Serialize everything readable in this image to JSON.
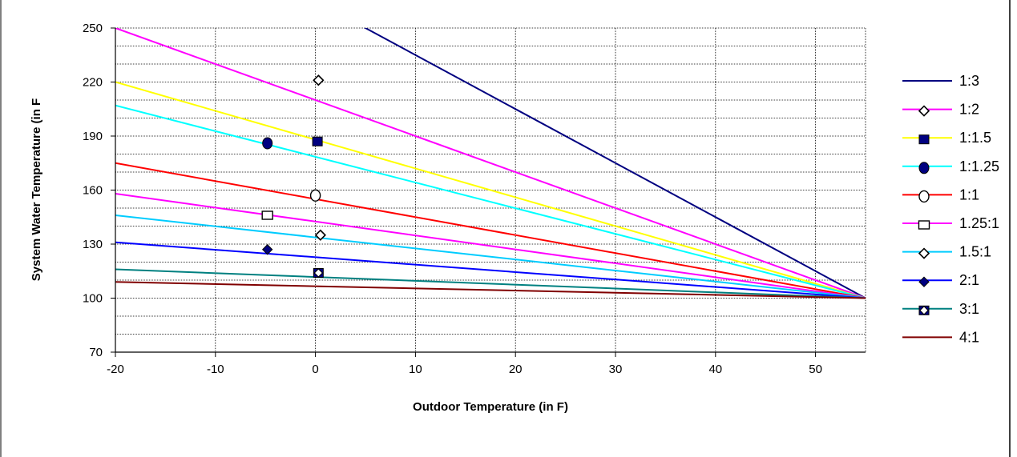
{
  "chart_data": {
    "type": "line",
    "title": "",
    "xlabel": "Outdoor Temperature (in F)",
    "ylabel": "System Water Temperature (in F",
    "xlim": [
      -20,
      55
    ],
    "ylim": [
      70,
      250
    ],
    "x_ticks": [
      -20,
      -10,
      0,
      10,
      20,
      30,
      40,
      50
    ],
    "y_ticks": [
      70,
      100,
      130,
      160,
      190,
      220,
      250
    ],
    "x_tick_labels": [
      "-20",
      "-10",
      "0",
      "10",
      "20",
      "30",
      "40",
      "50"
    ],
    "y_tick_labels": [
      "70",
      "100",
      "130",
      "160",
      "190",
      "220",
      "250"
    ],
    "y_minor_step": 10,
    "grid": true,
    "legend_position": "right",
    "series": [
      {
        "name": "1:3",
        "color": "#000080",
        "marker": "none",
        "line": [
          [
            -20,
            325
          ],
          [
            55,
            100
          ]
        ],
        "points": []
      },
      {
        "name": "1:2",
        "color": "#ff00ff",
        "marker": "diamond-open",
        "line": [
          [
            -20,
            250
          ],
          [
            55,
            100
          ]
        ],
        "points": [
          [
            0.3,
            221
          ]
        ]
      },
      {
        "name": "1:1.5",
        "color": "#ffff00",
        "marker": "square-filled",
        "line": [
          [
            -20,
            220
          ],
          [
            55,
            100
          ]
        ],
        "points": [
          [
            0.2,
            187
          ]
        ]
      },
      {
        "name": "1:1.25",
        "color": "#00ffff",
        "marker": "circle-filled",
        "line": [
          [
            -20,
            207
          ],
          [
            55,
            100
          ]
        ],
        "points": [
          [
            -4.8,
            186
          ]
        ]
      },
      {
        "name": "1:1",
        "color": "#ff0000",
        "marker": "circle-open",
        "line": [
          [
            -20,
            175
          ],
          [
            55,
            100
          ]
        ],
        "points": [
          [
            0,
            157
          ]
        ]
      },
      {
        "name": "1.25:1",
        "color": "#ff00ff",
        "marker": "square-open",
        "line": [
          [
            -20,
            158
          ],
          [
            55,
            100
          ]
        ],
        "points": [
          [
            -4.8,
            146
          ]
        ]
      },
      {
        "name": "1.5:1",
        "color": "#00ccff",
        "marker": "diamond-open",
        "line": [
          [
            -20,
            146
          ],
          [
            55,
            100
          ]
        ],
        "points": [
          [
            0.5,
            135
          ]
        ]
      },
      {
        "name": "2:1",
        "color": "#0000ff",
        "marker": "diamond-filled",
        "line": [
          [
            -20,
            131
          ],
          [
            55,
            100
          ]
        ],
        "points": [
          [
            -4.8,
            127
          ]
        ]
      },
      {
        "name": "3:1",
        "color": "#008080",
        "marker": "square-diamond",
        "line": [
          [
            -20,
            116
          ],
          [
            55,
            100
          ]
        ],
        "points": [
          [
            0.3,
            114
          ]
        ]
      },
      {
        "name": "4:1",
        "color": "#800000",
        "marker": "none",
        "line": [
          [
            -20,
            109
          ],
          [
            55,
            100
          ]
        ],
        "points": []
      }
    ]
  }
}
